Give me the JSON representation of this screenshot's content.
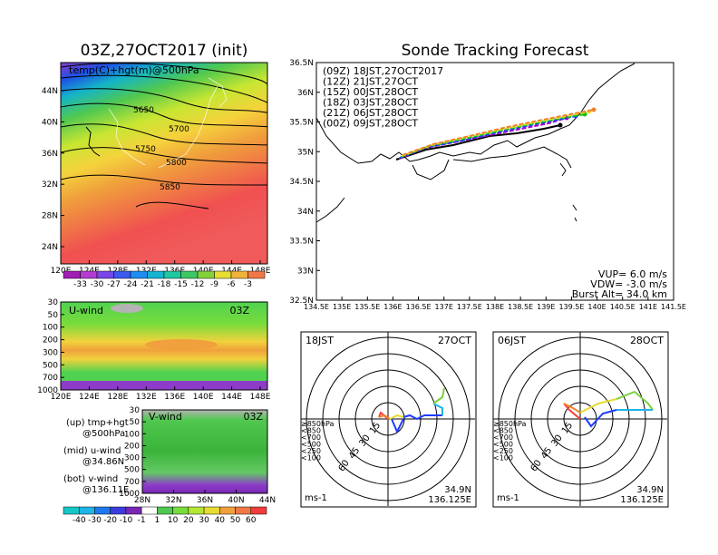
{
  "left": {
    "title": "03Z,27OCT2017 (init)",
    "top_map": {
      "label": "temp(C)+hgt(m)@500hPa",
      "y_ticks": [
        "44N",
        "40N",
        "36N",
        "32N",
        "28N",
        "24N"
      ],
      "x_ticks": [
        "120E",
        "124E",
        "128E",
        "132E",
        "136E",
        "140E",
        "144E",
        "148E"
      ],
      "contour_labels": [
        "5650",
        "5700",
        "5750",
        "5800",
        "5850"
      ]
    },
    "temp_colorbar": [
      "-33",
      "-30",
      "-27",
      "-24",
      "-21",
      "-18",
      "-15",
      "-12",
      "-9",
      "-6",
      "-3"
    ],
    "u_panel": {
      "label": "U-wind",
      "time": "03Z",
      "y_ticks": [
        "30",
        "50",
        "100",
        "200",
        "300",
        "500",
        "700",
        "1000"
      ],
      "x_ticks": [
        "120E",
        "124E",
        "128E",
        "132E",
        "136E",
        "140E",
        "144E",
        "148E"
      ]
    },
    "v_panel": {
      "label": "V-wind",
      "time": "03Z",
      "y_ticks": [
        "30",
        "50",
        "100",
        "200",
        "300",
        "500",
        "700",
        "1000"
      ],
      "x_ticks": [
        "28N",
        "32N",
        "36N",
        "40N",
        "44N"
      ]
    },
    "legend": {
      "up": [
        "(up) tmp+hgt",
        "@500hPa"
      ],
      "mid": [
        "(mid) u-wind",
        "@34.86N"
      ],
      "bot": [
        "(bot) v-wind",
        "@136.11E"
      ]
    },
    "wind_colorbar": [
      "-40",
      "-30",
      "-20",
      "-10",
      "-1",
      "1",
      "10",
      "20",
      "30",
      "40",
      "50",
      "60"
    ]
  },
  "tracking": {
    "title": "Sonde Tracking Forecast",
    "legend": [
      {
        "text": "(09Z)  18JST,27OCT2017",
        "color": "#000000"
      },
      {
        "text": "(12Z)  21JST,27OCT",
        "color": "#a000c8"
      },
      {
        "text": "(15Z)  00JST,28OCT",
        "color": "#1e3cff"
      },
      {
        "text": "(18Z)  03JST,28OCT",
        "color": "#00c800"
      },
      {
        "text": "(21Z)  06JST,28OCT",
        "color": "#e6dc32"
      },
      {
        "text": "(00Z)  09JST,28OCT",
        "color": "#f08228"
      }
    ],
    "y_ticks": [
      "36.5N",
      "36N",
      "35.5N",
      "35N",
      "34.5N",
      "34N",
      "33.5N",
      "33N",
      "32.5N"
    ],
    "x_ticks": [
      "134.5E",
      "135E",
      "135.5E",
      "136E",
      "136.5E",
      "137E",
      "137.5E",
      "138E",
      "138.5E",
      "139E",
      "139.5E",
      "140E",
      "140.5E",
      "141E",
      "141.5E"
    ],
    "info": [
      "VUP=  6.0 m/s",
      "VDW= -3.0 m/s",
      "Burst Alt=  34.0  km"
    ]
  },
  "polar1": {
    "time": "18JST",
    "date": "27OCT",
    "ring_labels": [
      "15",
      "30",
      "45",
      "60"
    ],
    "unit": "ms-1",
    "lat": "34.9N",
    "lon": "136.125E"
  },
  "polar2": {
    "time": "06JST",
    "date": "28OCT",
    "ring_labels": [
      "15",
      "30",
      "45",
      "60"
    ],
    "unit": "ms-1",
    "lat": "34.9N",
    "lon": "136.125E"
  },
  "polar_legend": [
    {
      "text": "≥850hPa",
      "color": "#ff3c3c"
    },
    {
      "text": "<850",
      "color": "#f08228"
    },
    {
      "text": "<700",
      "color": "#e6dc32"
    },
    {
      "text": "<500",
      "color": "#78d23c"
    },
    {
      "text": "<250",
      "color": "#1eb4e6"
    },
    {
      "text": "<100",
      "color": "#1e3cff"
    }
  ]
}
